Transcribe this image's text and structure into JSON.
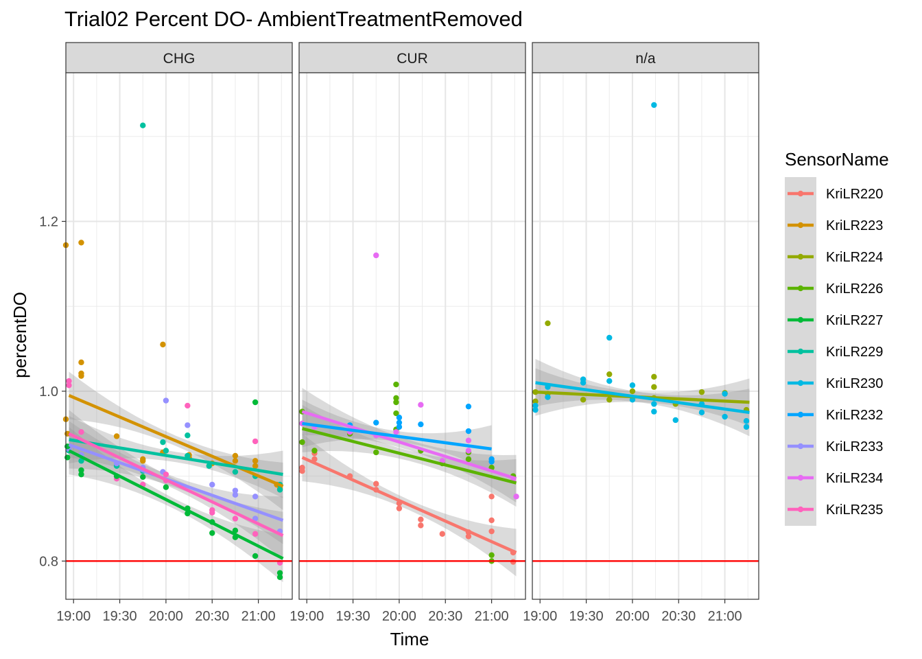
{
  "chart_data": {
    "type": "scatter",
    "title": "Trial02 Percent DO- AmbientTreatmentRemoved",
    "xlabel": "Time",
    "ylabel": "percentDO",
    "x_ticks": [
      "19:00",
      "19:30",
      "20:00",
      "20:30",
      "21:00"
    ],
    "y_ticks": [
      "0.8",
      "1.0",
      "1.2"
    ],
    "xlim": [
      "18:55",
      "21:22"
    ],
    "ylim": [
      0.755,
      1.375
    ],
    "grid": true,
    "reference_line": {
      "y": 0.8,
      "color": "#ff0000"
    },
    "facets": [
      "CHG",
      "CUR",
      "n/a"
    ],
    "legend": {
      "title": "SensorName",
      "position": "right"
    },
    "series": [
      {
        "name": "KriLR220",
        "color": "#F8766D"
      },
      {
        "name": "KriLR223",
        "color": "#D39200"
      },
      {
        "name": "KriLR224",
        "color": "#93AA00"
      },
      {
        "name": "KriLR226",
        "color": "#5BB300"
      },
      {
        "name": "KriLR227",
        "color": "#00BA38"
      },
      {
        "name": "KriLR229",
        "color": "#00C19F"
      },
      {
        "name": "KriLR230",
        "color": "#00B9E3"
      },
      {
        "name": "KriLR232",
        "color": "#00A5FF"
      },
      {
        "name": "KriLR233",
        "color": "#9590FF"
      },
      {
        "name": "KriLR234",
        "color": "#E76BF3"
      },
      {
        "name": "KriLR235",
        "color": "#FF62BC"
      }
    ],
    "fits": [
      {
        "facet": "CHG",
        "series": "KriLR223",
        "x": [
          "18:57",
          "21:16"
        ],
        "y": [
          0.995,
          0.888
        ]
      },
      {
        "facet": "CHG",
        "series": "KriLR229",
        "x": [
          "18:57",
          "21:16"
        ],
        "y": [
          0.943,
          0.902
        ]
      },
      {
        "facet": "CHG",
        "series": "KriLR233",
        "x": [
          "18:57",
          "21:16"
        ],
        "y": [
          0.937,
          0.848
        ]
      },
      {
        "facet": "CHG",
        "series": "KriLR235",
        "x": [
          "18:57",
          "21:16"
        ],
        "y": [
          0.95,
          0.83
        ]
      },
      {
        "facet": "CHG",
        "series": "KriLR227",
        "x": [
          "18:57",
          "21:16"
        ],
        "y": [
          0.93,
          0.803
        ]
      },
      {
        "facet": "CUR",
        "series": "KriLR234",
        "x": [
          "18:57",
          "21:16"
        ],
        "y": [
          0.976,
          0.897
        ]
      },
      {
        "facet": "CUR",
        "series": "KriLR232",
        "x": [
          "18:57",
          "21:00"
        ],
        "y": [
          0.962,
          0.932
        ]
      },
      {
        "facet": "CUR",
        "series": "KriLR226",
        "x": [
          "18:57",
          "21:16"
        ],
        "y": [
          0.956,
          0.892
        ]
      },
      {
        "facet": "CUR",
        "series": "KriLR220",
        "x": [
          "18:57",
          "21:16"
        ],
        "y": [
          0.922,
          0.81
        ]
      },
      {
        "facet": "n/a",
        "series": "KriLR224",
        "x": [
          "18:57",
          "21:16"
        ],
        "y": [
          0.999,
          0.987
        ]
      },
      {
        "facet": "n/a",
        "series": "KriLR230",
        "x": [
          "18:57",
          "21:16"
        ],
        "y": [
          1.01,
          0.975
        ]
      }
    ],
    "points": [
      {
        "facet": "CHG",
        "series": "KriLR223",
        "x": [
          "18:55",
          "18:55",
          "18:56",
          "19:05",
          "19:05",
          "19:05",
          "19:05",
          "19:28",
          "19:45",
          "19:45",
          "19:58",
          "19:58",
          "20:15",
          "20:15",
          "20:30",
          "20:45",
          "20:45",
          "20:58",
          "20:58",
          "21:12",
          "21:14"
        ],
        "y": [
          1.172,
          0.967,
          0.95,
          1.175,
          1.034,
          1.021,
          1.018,
          0.947,
          0.92,
          0.918,
          1.055,
          0.928,
          0.925,
          0.922,
          0.915,
          0.924,
          0.918,
          0.918,
          0.912,
          0.89,
          0.885
        ]
      },
      {
        "facet": "CHG",
        "series": "KriLR229",
        "x": [
          "18:57",
          "19:05",
          "19:28",
          "19:45",
          "19:45",
          "19:58",
          "20:00",
          "20:14",
          "20:14",
          "20:28",
          "20:45",
          "20:58",
          "21:14",
          "21:14"
        ],
        "y": [
          0.93,
          0.918,
          0.912,
          1.313,
          0.906,
          0.94,
          0.93,
          0.948,
          0.924,
          0.912,
          0.905,
          0.9,
          0.89,
          0.884
        ]
      },
      {
        "facet": "CHG",
        "series": "KriLR233",
        "x": [
          "18:57",
          "19:05",
          "19:28",
          "19:45",
          "19:58",
          "20:00",
          "20:14",
          "20:30",
          "20:45",
          "20:45",
          "20:58",
          "20:58",
          "21:14"
        ],
        "y": [
          0.932,
          0.925,
          0.915,
          0.91,
          0.905,
          0.989,
          0.96,
          0.89,
          0.883,
          0.878,
          0.876,
          0.85,
          0.835
        ]
      },
      {
        "facet": "CHG",
        "series": "KriLR235",
        "x": [
          "18:57",
          "18:57",
          "19:05",
          "19:28",
          "19:45",
          "20:00",
          "20:00",
          "20:14",
          "20:30",
          "20:30",
          "20:45",
          "20:58",
          "20:58",
          "21:14"
        ],
        "y": [
          1.012,
          1.007,
          0.952,
          0.897,
          0.89,
          0.902,
          0.895,
          0.983,
          0.857,
          0.86,
          0.85,
          0.941,
          0.832,
          0.798
        ]
      },
      {
        "facet": "CHG",
        "series": "KriLR227",
        "x": [
          "18:56",
          "18:56",
          "19:05",
          "19:05",
          "19:28",
          "19:45",
          "20:00",
          "20:14",
          "20:14",
          "20:30",
          "20:30",
          "20:45",
          "20:45",
          "20:58",
          "20:58",
          "21:14",
          "21:14"
        ],
        "y": [
          0.935,
          0.922,
          0.907,
          0.902,
          0.9,
          0.899,
          0.887,
          0.862,
          0.856,
          0.846,
          0.833,
          0.836,
          0.828,
          0.987,
          0.806,
          0.786,
          0.781
        ]
      },
      {
        "facet": "CUR",
        "series": "KriLR220",
        "x": [
          "18:57",
          "18:57",
          "19:05",
          "19:05",
          "19:28",
          "19:45",
          "19:45",
          "20:00",
          "20:00",
          "20:14",
          "20:14",
          "20:28",
          "20:45",
          "20:45",
          "21:00",
          "21:00",
          "21:00",
          "21:14",
          "21:14"
        ],
        "y": [
          0.91,
          0.906,
          0.927,
          0.92,
          0.9,
          0.891,
          0.884,
          0.868,
          0.862,
          0.849,
          0.842,
          0.832,
          0.834,
          0.829,
          0.876,
          0.848,
          0.835,
          0.81,
          0.799
        ]
      },
      {
        "facet": "CUR",
        "series": "KriLR226",
        "x": [
          "18:57",
          "18:57",
          "19:05",
          "19:28",
          "19:45",
          "19:58",
          "19:58",
          "19:58",
          "19:58",
          "19:58",
          "20:14",
          "20:28",
          "20:45",
          "20:45",
          "21:00",
          "21:00",
          "21:00",
          "21:14"
        ],
        "y": [
          0.976,
          0.94,
          0.93,
          0.95,
          0.928,
          1.008,
          0.992,
          0.987,
          0.974,
          0.955,
          0.93,
          0.915,
          0.928,
          0.92,
          0.91,
          0.807,
          0.8,
          0.9
        ]
      },
      {
        "facet": "CUR",
        "series": "KriLR232",
        "x": [
          "19:28",
          "19:45",
          "20:00",
          "20:00",
          "20:00",
          "20:14",
          "20:45",
          "20:45",
          "21:00",
          "21:00"
        ],
        "y": [
          0.96,
          0.963,
          0.969,
          0.963,
          0.958,
          0.961,
          0.982,
          0.953,
          0.92,
          0.917
        ]
      },
      {
        "facet": "CUR",
        "series": "KriLR234",
        "x": [
          "18:57",
          "19:05",
          "19:28",
          "19:45",
          "19:45",
          "19:58",
          "20:14",
          "20:28",
          "20:45",
          "20:45",
          "21:14",
          "21:16"
        ],
        "y": [
          0.962,
          0.958,
          0.952,
          1.16,
          0.948,
          0.952,
          0.984,
          0.918,
          0.942,
          0.93,
          0.895,
          0.876
        ]
      },
      {
        "facet": "n/a",
        "series": "KriLR224",
        "x": [
          "18:57",
          "18:57",
          "19:05",
          "19:05",
          "19:28",
          "19:45",
          "19:45",
          "20:00",
          "20:14",
          "20:14",
          "20:14",
          "20:28",
          "20:45",
          "21:00",
          "21:14"
        ],
        "y": [
          0.999,
          0.988,
          1.08,
          0.997,
          0.99,
          1.02,
          0.99,
          1.0,
          1.017,
          1.005,
          0.992,
          0.985,
          0.999,
          0.998,
          0.978
        ]
      },
      {
        "facet": "n/a",
        "series": "KriLR230",
        "x": [
          "18:57",
          "18:57",
          "19:05",
          "19:05",
          "19:28",
          "19:28",
          "19:45",
          "19:45",
          "20:00",
          "20:00",
          "20:14",
          "20:14",
          "20:14",
          "20:28",
          "20:45",
          "20:45",
          "21:00",
          "21:00",
          "21:14",
          "21:14"
        ],
        "y": [
          0.983,
          0.978,
          1.005,
          0.993,
          1.014,
          1.01,
          1.063,
          1.012,
          1.007,
          0.99,
          1.337,
          0.985,
          0.976,
          0.966,
          0.975,
          0.985,
          0.997,
          0.97,
          0.965,
          0.958
        ]
      }
    ]
  }
}
